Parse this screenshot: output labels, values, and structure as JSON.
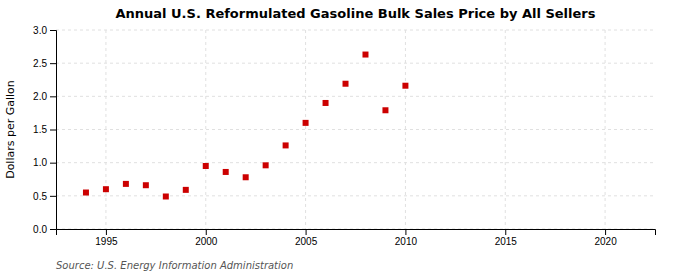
{
  "chart_data": {
    "type": "scatter",
    "title": "Annual U.S. Reformulated Gasoline Bulk Sales Price by All Sellers",
    "ylabel": "Dollars per Gallon",
    "annotations": [
      "Source: U.S. Energy Information Administration"
    ],
    "x": [
      1994,
      1995,
      1996,
      1997,
      1998,
      1999,
      2000,
      2001,
      2002,
      2003,
      2004,
      2005,
      2006,
      2007,
      2008,
      2009,
      2010
    ],
    "values": [
      0.55,
      0.6,
      0.68,
      0.66,
      0.49,
      0.59,
      0.95,
      0.86,
      0.78,
      0.96,
      1.26,
      1.6,
      1.9,
      2.19,
      2.63,
      1.79,
      2.16
    ],
    "color": "#cc0000",
    "marker": "square",
    "xlim": [
      1992.5,
      2022.5
    ],
    "ylim": [
      0.0,
      3.0
    ],
    "xticks": [
      1995,
      2000,
      2005,
      2010,
      2015,
      2020
    ],
    "yticks": [
      {
        "value": 0,
        "label": "0.0"
      },
      0.5,
      {
        "value": 1,
        "label": "1.0"
      },
      1.5,
      {
        "value": 2,
        "label": "2.0"
      },
      2.5,
      {
        "value": 3,
        "label": "3.0"
      }
    ],
    "grid": true
  }
}
